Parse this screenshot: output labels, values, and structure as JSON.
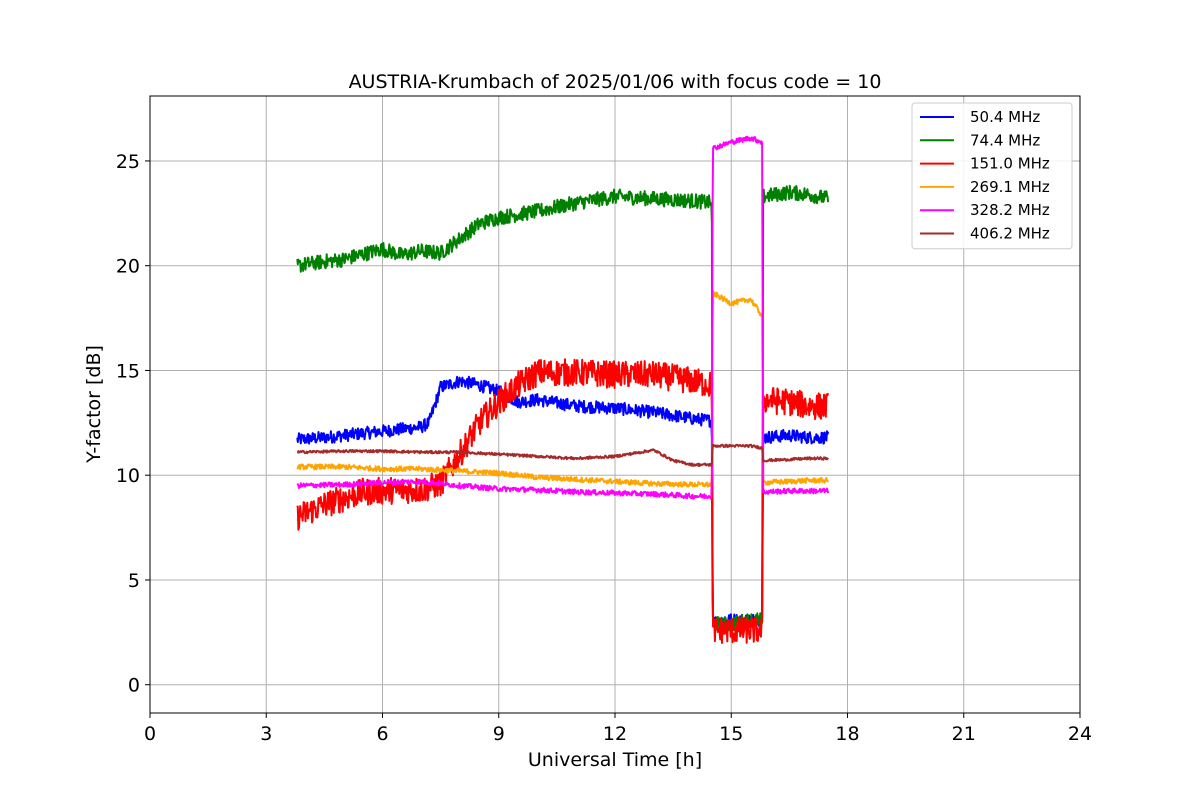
{
  "chart_data": {
    "type": "line",
    "title": "AUSTRIA-Krumbach of 2025/01/06 with focus code = 10",
    "xlabel": "Universal Time [h]",
    "ylabel": "Y-factor [dB]",
    "xlim": [
      0,
      24
    ],
    "ylim": [
      -1.35,
      28.1
    ],
    "xticks": [
      0,
      3,
      6,
      9,
      12,
      15,
      18,
      21,
      24
    ],
    "yticks": [
      0,
      5,
      10,
      15,
      20,
      25
    ],
    "grid": true,
    "legend_position": "top-right",
    "series": [
      {
        "name": "50.4 MHz",
        "color": "#0000ff",
        "x": [
          3.8,
          4.5,
          5.5,
          6.5,
          7.0,
          7.2,
          7.5,
          8.0,
          8.5,
          9.0,
          9.5,
          10.0,
          11.0,
          12.0,
          13.0,
          14.0,
          14.5,
          14.52,
          15.0,
          15.5,
          15.8,
          15.82,
          16.5,
          17.0,
          17.5
        ],
        "y": [
          11.7,
          11.8,
          12.0,
          12.2,
          12.3,
          12.5,
          14.2,
          14.5,
          14.3,
          14.0,
          13.5,
          13.6,
          13.3,
          13.2,
          13.0,
          12.7,
          12.6,
          3.0,
          3.1,
          3.1,
          3.1,
          11.8,
          11.9,
          11.8,
          11.8
        ],
        "noise": 0.3
      },
      {
        "name": "74.4 MHz",
        "color": "#008000",
        "x": [
          3.8,
          4.5,
          5.0,
          6.0,
          6.5,
          7.0,
          7.5,
          8.0,
          8.5,
          9.0,
          10.0,
          11.0,
          12.0,
          13.0,
          14.0,
          14.5,
          14.52,
          15.0,
          15.5,
          15.8,
          15.82,
          16.5,
          17.0,
          17.5
        ],
        "y": [
          20.0,
          20.2,
          20.3,
          20.8,
          20.5,
          20.7,
          20.6,
          21.3,
          22.0,
          22.3,
          22.6,
          23.0,
          23.3,
          23.2,
          23.1,
          23.0,
          2.9,
          2.9,
          3.1,
          3.1,
          23.3,
          23.5,
          23.4,
          23.2
        ],
        "noise": 0.35
      },
      {
        "name": "151.0 MHz",
        "color": "#ff0000",
        "x": [
          3.8,
          4.5,
          5.5,
          6.5,
          7.0,
          7.5,
          8.0,
          8.5,
          9.0,
          9.5,
          10.0,
          11.0,
          12.0,
          13.0,
          14.0,
          14.5,
          14.52,
          15.0,
          15.5,
          15.8,
          15.82,
          16.5,
          17.0,
          17.5
        ],
        "y": [
          8.0,
          8.6,
          9.2,
          9.3,
          9.3,
          9.6,
          11.0,
          12.5,
          13.5,
          14.3,
          14.9,
          14.9,
          14.8,
          14.8,
          14.5,
          14.3,
          2.6,
          2.6,
          2.6,
          2.6,
          13.6,
          13.5,
          13.3,
          13.3
        ],
        "noise": 0.65
      },
      {
        "name": "269.1 MHz",
        "color": "#ffa500",
        "x": [
          3.8,
          5.0,
          6.0,
          7.0,
          8.0,
          9.0,
          10.0,
          11.0,
          12.0,
          13.0,
          14.0,
          14.5,
          14.52,
          15.0,
          15.5,
          15.8,
          15.82,
          16.5,
          17.0,
          17.5
        ],
        "y": [
          10.4,
          10.4,
          10.3,
          10.3,
          10.2,
          10.1,
          9.9,
          9.8,
          9.7,
          9.6,
          9.55,
          9.55,
          18.7,
          18.2,
          18.4,
          17.6,
          9.65,
          9.7,
          9.75,
          9.75
        ],
        "noise": 0.12
      },
      {
        "name": "328.2 MHz",
        "color": "#ff00ff",
        "x": [
          3.8,
          5.0,
          6.0,
          7.0,
          8.0,
          9.0,
          10.0,
          11.0,
          12.0,
          13.0,
          14.0,
          14.5,
          14.52,
          15.0,
          15.5,
          15.8,
          15.82,
          16.5,
          17.0,
          17.5
        ],
        "y": [
          9.5,
          9.55,
          9.65,
          9.7,
          9.5,
          9.35,
          9.3,
          9.2,
          9.15,
          9.1,
          9.0,
          9.0,
          25.6,
          25.9,
          26.1,
          25.9,
          9.2,
          9.25,
          9.25,
          9.25
        ],
        "noise": 0.12
      },
      {
        "name": "406.2 MHz",
        "color": "#a52a2a",
        "x": [
          3.8,
          5.0,
          6.0,
          7.0,
          8.0,
          9.0,
          10.0,
          11.0,
          12.0,
          13.0,
          13.5,
          14.0,
          14.5,
          14.52,
          15.0,
          15.5,
          15.8,
          15.82,
          16.5,
          17.0,
          17.5
        ],
        "y": [
          11.1,
          11.15,
          11.15,
          11.1,
          11.1,
          11.0,
          10.9,
          10.8,
          10.9,
          11.2,
          10.7,
          10.5,
          10.5,
          11.4,
          11.4,
          11.4,
          11.3,
          10.7,
          10.75,
          10.8,
          10.8
        ],
        "noise": 0.06
      }
    ]
  }
}
